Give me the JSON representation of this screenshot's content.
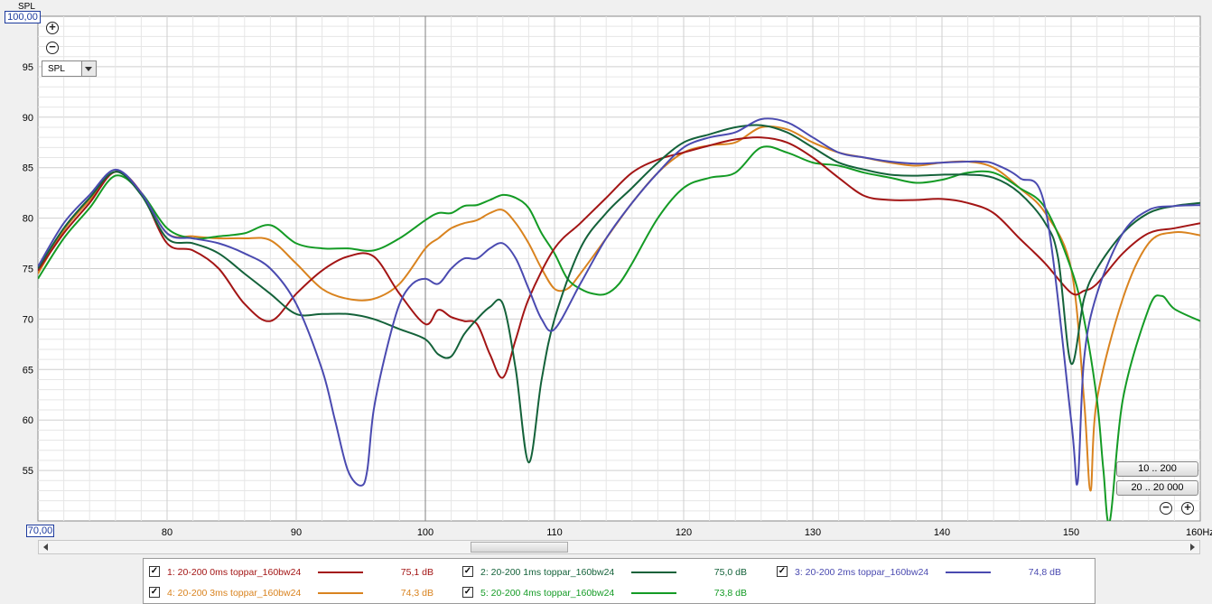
{
  "y_axis_name": "SPL",
  "y_top_value": "100,00",
  "y_bottom_value": "70,00",
  "x_unit_label": "160Hz",
  "dropdown": {
    "selected": "SPL"
  },
  "range_buttons": [
    "10 .. 200",
    "20 .. 20 000"
  ],
  "colors": {
    "grid_major": "#cfcfcf",
    "grid_minor": "#e6e6e6",
    "plot_bg": "#ffffff",
    "cursor": "#808080"
  },
  "chart_data": {
    "type": "line",
    "xlim": [
      70,
      160
    ],
    "ylim": [
      50,
      100
    ],
    "x_ticks": [
      80,
      90,
      100,
      110,
      120,
      130,
      140,
      150
    ],
    "y_ticks": [
      55,
      60,
      65,
      70,
      75,
      80,
      85,
      90,
      95
    ],
    "cursor_x": 100,
    "series": [
      {
        "name": "1: 20-200 0ms  toppar_160bw24",
        "value": "75,1 dB",
        "color": "#a31515",
        "x": [
          70,
          72,
          74,
          76,
          78,
          80,
          82,
          84,
          86,
          88,
          90,
          92,
          94,
          96,
          98,
          100,
          101,
          102,
          103,
          104,
          105,
          106,
          107,
          108,
          110,
          112,
          114,
          116,
          118,
          120,
          122,
          124,
          126,
          128,
          130,
          132,
          134,
          136,
          138,
          140,
          142,
          144,
          146,
          148,
          150,
          151,
          152,
          154,
          156,
          158,
          160
        ],
        "y": [
          74.8,
          78.5,
          81.5,
          84.6,
          82.5,
          77.5,
          76.8,
          75.0,
          71.5,
          69.8,
          72.5,
          74.8,
          76.2,
          76.2,
          72.5,
          69.5,
          70.9,
          70.2,
          69.8,
          69.5,
          66.5,
          64.2,
          68.0,
          72.0,
          77.0,
          79.5,
          82.0,
          84.5,
          85.8,
          86.5,
          87.2,
          87.8,
          88.0,
          87.5,
          86.0,
          84.0,
          82.2,
          81.8,
          81.8,
          81.9,
          81.5,
          80.5,
          78.0,
          75.5,
          72.6,
          72.8,
          73.5,
          76.5,
          78.5,
          79.0,
          79.5
        ]
      },
      {
        "name": "2: 20-200 1ms  toppar_160bw24",
        "value": "75,0 dB",
        "color": "#14623a",
        "x": [
          70,
          72,
          74,
          76,
          78,
          80,
          82,
          84,
          86,
          88,
          90,
          92,
          94,
          96,
          98,
          100,
          101,
          102,
          103,
          104,
          105,
          106,
          107,
          108,
          109,
          110,
          112,
          114,
          116,
          118,
          120,
          122,
          124,
          126,
          128,
          130,
          132,
          134,
          136,
          138,
          140,
          142,
          144,
          146,
          148,
          149,
          150,
          151,
          152,
          154,
          156,
          158,
          160
        ],
        "y": [
          75.0,
          79.0,
          82.0,
          84.6,
          82.3,
          78.0,
          77.5,
          76.5,
          74.5,
          72.5,
          70.5,
          70.5,
          70.5,
          70.0,
          69.0,
          68.0,
          66.5,
          66.3,
          68.5,
          70.0,
          71.2,
          71.5,
          65.0,
          55.8,
          64.0,
          70.0,
          77.0,
          80.5,
          83.0,
          85.5,
          87.5,
          88.3,
          89.0,
          89.2,
          88.5,
          87.0,
          85.5,
          84.8,
          84.3,
          84.2,
          84.3,
          84.3,
          84.0,
          82.5,
          79.5,
          76.0,
          65.6,
          72.0,
          75.0,
          78.5,
          80.5,
          81.2,
          81.5
        ]
      },
      {
        "name": "3: 20-200 2ms  toppar_160bw24",
        "value": "74,8 dB",
        "color": "#4a4ab0",
        "x": [
          70,
          72,
          74,
          76,
          78,
          80,
          82,
          84,
          86,
          88,
          90,
          92,
          93,
          94,
          95,
          95.5,
          96,
          97,
          98,
          99,
          100,
          101,
          102,
          103,
          104,
          105,
          106,
          107,
          108,
          109,
          110,
          112,
          114,
          116,
          118,
          120,
          122,
          124,
          126,
          128,
          130,
          132,
          134,
          136,
          138,
          140,
          142,
          143,
          144,
          146,
          148,
          150,
          150.5,
          151,
          152,
          154,
          156,
          158,
          160
        ],
        "y": [
          75.2,
          79.5,
          82.3,
          84.8,
          82.5,
          78.5,
          78.0,
          77.5,
          76.5,
          75.0,
          71.5,
          65.0,
          60.0,
          55.0,
          53.5,
          55.0,
          61.0,
          67.0,
          71.5,
          73.5,
          74.0,
          73.5,
          75.0,
          76.0,
          76.0,
          77.0,
          77.5,
          76.0,
          73.0,
          70.0,
          69.0,
          73.5,
          78.0,
          81.5,
          84.5,
          87.0,
          88.0,
          88.5,
          89.8,
          89.5,
          88.0,
          86.5,
          86.0,
          85.6,
          85.4,
          85.5,
          85.6,
          85.6,
          85.4,
          84.0,
          81.0,
          60.0,
          53.8,
          66.0,
          72.5,
          78.5,
          80.8,
          81.2,
          81.3
        ]
      },
      {
        "name": "4: 20-200 3ms  toppar_160bw24",
        "value": "74,3 dB",
        "color": "#d9831f",
        "x": [
          70,
          72,
          74,
          76,
          78,
          80,
          82,
          84,
          86,
          88,
          90,
          92,
          94,
          96,
          98,
          100,
          101,
          102,
          103,
          104,
          105,
          106,
          107,
          108,
          109,
          110,
          111,
          112,
          114,
          116,
          118,
          120,
          122,
          124,
          126,
          128,
          130,
          132,
          134,
          136,
          138,
          140,
          142,
          144,
          146,
          148,
          150,
          151,
          151.5,
          152,
          154,
          156,
          158,
          160
        ],
        "y": [
          74.5,
          78.8,
          81.8,
          84.6,
          82.5,
          78.5,
          78.2,
          78.0,
          78.0,
          77.8,
          75.5,
          73.0,
          72.0,
          72.0,
          73.5,
          77.0,
          78.0,
          79.0,
          79.5,
          79.8,
          80.5,
          80.8,
          79.5,
          77.5,
          75.0,
          73.0,
          73.0,
          74.5,
          78.0,
          81.5,
          84.5,
          86.5,
          87.2,
          87.5,
          89.0,
          88.8,
          87.5,
          86.5,
          86.0,
          85.5,
          85.2,
          85.5,
          85.6,
          85.0,
          83.0,
          80.5,
          75.0,
          62.0,
          53.0,
          62.0,
          72.0,
          77.5,
          78.6,
          78.3
        ]
      },
      {
        "name": "5: 20-200 4ms  toppar_160bw24",
        "value": "73,8 dB",
        "color": "#149b25",
        "x": [
          70,
          72,
          74,
          76,
          78,
          80,
          82,
          84,
          86,
          88,
          90,
          92,
          94,
          96,
          98,
          100,
          101,
          102,
          103,
          104,
          105,
          106,
          107,
          108,
          109,
          110,
          111,
          112,
          113,
          114,
          115,
          116,
          118,
          120,
          122,
          124,
          126,
          128,
          130,
          132,
          134,
          136,
          138,
          140,
          142,
          144,
          146,
          148,
          150,
          151,
          152,
          152.5,
          153,
          154,
          156,
          157,
          158,
          160
        ],
        "y": [
          74.0,
          78.0,
          81.0,
          84.2,
          82.5,
          79.0,
          78.0,
          78.2,
          78.5,
          79.3,
          77.5,
          77.0,
          77.0,
          76.8,
          78.0,
          79.8,
          80.5,
          80.5,
          81.2,
          81.3,
          81.8,
          82.3,
          82.0,
          81.0,
          78.5,
          76.5,
          74.0,
          73.0,
          72.5,
          72.5,
          73.5,
          75.5,
          80.0,
          83.0,
          84.0,
          84.5,
          87.0,
          86.5,
          85.5,
          85.2,
          84.5,
          84.0,
          83.5,
          83.8,
          84.5,
          84.5,
          83.0,
          81.0,
          75.0,
          70.0,
          62.0,
          55.0,
          50.0,
          62.0,
          71.0,
          72.3,
          71.0,
          69.8
        ]
      }
    ]
  }
}
